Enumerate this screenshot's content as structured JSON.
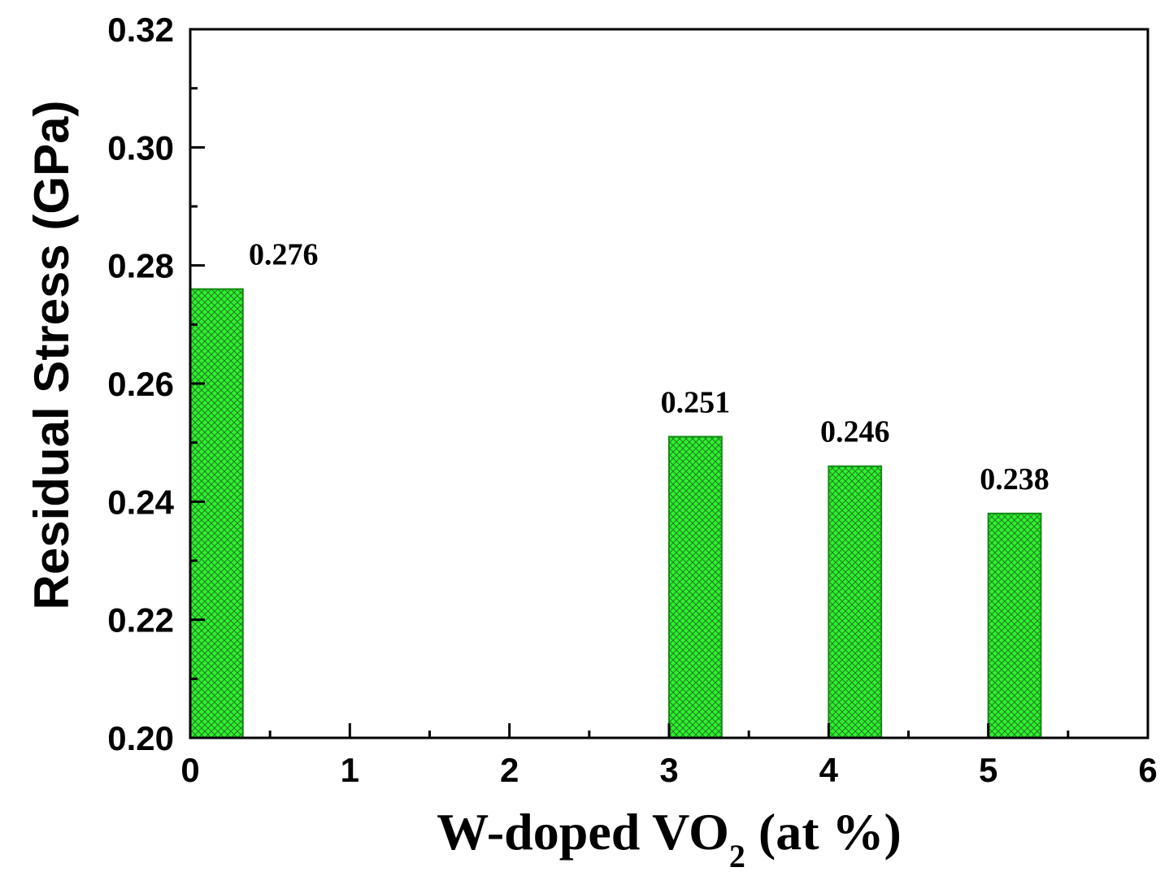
{
  "chart_data": {
    "type": "bar",
    "title": "",
    "xlabel": {
      "text": "W-doped VO",
      "subscript": "2",
      "suffix": " (at %)"
    },
    "ylabel": "Residual Stress (GPa)",
    "x": [
      0,
      3,
      4,
      5
    ],
    "values": [
      0.276,
      0.251,
      0.246,
      0.238
    ],
    "data_labels": [
      "0.276",
      "0.251",
      "0.246",
      "0.238"
    ],
    "xlim": [
      0,
      6
    ],
    "ylim": [
      0.2,
      0.32
    ],
    "bar_width": 0.33,
    "x_major_ticks": [
      0,
      1,
      2,
      3,
      4,
      5,
      6
    ],
    "x_tick_labels": [
      "0",
      "1",
      "2",
      "3",
      "4",
      "5",
      "6"
    ],
    "x_minor_ticks": [
      0.5,
      1.5,
      2.5,
      3.5,
      4.5,
      5.5
    ],
    "y_major_ticks": [
      0.2,
      0.22,
      0.24,
      0.26,
      0.28,
      0.3,
      0.32
    ],
    "y_tick_labels": [
      "0.20",
      "0.22",
      "0.24",
      "0.26",
      "0.28",
      "0.30",
      "0.32"
    ],
    "y_minor_ticks": [
      0.21,
      0.23,
      0.25,
      0.27,
      0.29,
      0.31
    ],
    "grid": false,
    "legend": "none",
    "bar_fill_color": "#33ee33",
    "bar_hatch_color": "#1a7f1a",
    "bar_edge_color": "#138a13",
    "axis_color": "#000000"
  }
}
